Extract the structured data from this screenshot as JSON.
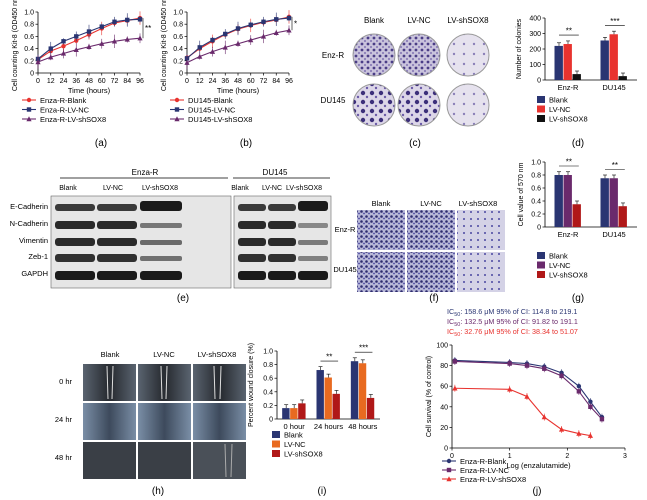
{
  "colors": {
    "red": "#e8332f",
    "navy": "#2a3572",
    "purple": "#6a2a6c",
    "darkred": "#b01818",
    "black": "#111111"
  },
  "panel_labels": [
    "(a)",
    "(b)",
    "(c)",
    "(d)",
    "(e)",
    "(f)",
    "(g)",
    "(h)",
    "(i)",
    "(j)"
  ],
  "chart_data": [
    {
      "type": "line",
      "panel": "(a)",
      "xlabel": "Time (hours)",
      "ylabel": "Cell counting Kit-8 (OD450 nm)",
      "xlim": [
        0,
        96
      ],
      "ylim": [
        0,
        1.0
      ],
      "x": [
        0,
        12,
        24,
        36,
        48,
        60,
        72,
        84,
        96
      ],
      "xticks": [
        0,
        12,
        24,
        36,
        48,
        60,
        72,
        84,
        96
      ],
      "yticks": [
        0,
        0.2,
        0.4,
        0.6,
        0.8,
        1.0
      ],
      "ytick_labels": [
        "0",
        "0.2",
        "0.4",
        "0.6",
        "0.8",
        "1.0"
      ],
      "series": [
        {
          "name": "Enza-R-Blank",
          "marker": "circle",
          "color": "#e8332f",
          "values": [
            0.22,
            0.36,
            0.44,
            0.53,
            0.63,
            0.73,
            0.82,
            0.86,
            0.9
          ]
        },
        {
          "name": "Enza-R-LV-NC",
          "marker": "square",
          "color": "#2a3572",
          "values": [
            0.23,
            0.4,
            0.52,
            0.6,
            0.68,
            0.76,
            0.84,
            0.87,
            0.88
          ]
        },
        {
          "name": "Enza-R-LV-shSOX8",
          "marker": "triangle",
          "color": "#6a2a6c",
          "values": [
            0.18,
            0.26,
            0.32,
            0.38,
            0.43,
            0.48,
            0.52,
            0.55,
            0.57
          ]
        }
      ],
      "annotations": [
        "**"
      ]
    },
    {
      "type": "line",
      "panel": "(b)",
      "xlabel": "Time (hours)",
      "ylabel": "Cell counting Kit-8 (OD450 nm)",
      "xlim": [
        0,
        96
      ],
      "ylim": [
        0,
        1.0
      ],
      "x": [
        0,
        12,
        24,
        36,
        48,
        60,
        72,
        84,
        96
      ],
      "xticks": [
        0,
        12,
        24,
        36,
        48,
        60,
        72,
        84,
        96
      ],
      "yticks": [
        0,
        0.2,
        0.4,
        0.6,
        0.8,
        1.0
      ],
      "ytick_labels": [
        "0",
        "0.2",
        "0.4",
        "0.6",
        "0.8",
        "1.0"
      ],
      "series": [
        {
          "name": "DU145-Blank",
          "marker": "circle",
          "color": "#e8332f",
          "values": [
            0.25,
            0.4,
            0.52,
            0.63,
            0.72,
            0.78,
            0.83,
            0.87,
            0.92
          ]
        },
        {
          "name": "DU145-LV-NC",
          "marker": "square",
          "color": "#2a3572",
          "values": [
            0.24,
            0.42,
            0.54,
            0.64,
            0.73,
            0.79,
            0.84,
            0.88,
            0.9
          ]
        },
        {
          "name": "DU145-LV-shSOX8",
          "marker": "triangle",
          "color": "#6a2a6c",
          "values": [
            0.17,
            0.27,
            0.35,
            0.42,
            0.48,
            0.54,
            0.6,
            0.66,
            0.7
          ]
        }
      ],
      "annotations": [
        "*"
      ]
    },
    {
      "type": "bar",
      "panel": "(d)",
      "ylabel": "Number of colonies",
      "ylim": [
        0,
        400
      ],
      "yticks": [
        0,
        100,
        200,
        300,
        400
      ],
      "categories": [
        "Enz-R",
        "DU145"
      ],
      "series": [
        {
          "name": "Blank",
          "color": "#2a3572",
          "values": [
            220,
            255
          ]
        },
        {
          "name": "LV-NC",
          "color": "#e8332f",
          "values": [
            232,
            295
          ]
        },
        {
          "name": "LV-shSOX8",
          "color": "#111111",
          "values": [
            38,
            25
          ]
        }
      ],
      "annotations": [
        "**",
        "***"
      ]
    },
    {
      "type": "bar",
      "panel": "(g)",
      "ylabel": "Cell value of 570 nm",
      "ylim": [
        0,
        1.0
      ],
      "yticks": [
        0,
        0.2,
        0.4,
        0.6,
        0.8,
        1.0
      ],
      "ytick_labels": [
        "0",
        "0.2",
        "0.4",
        "0.6",
        "0.8",
        "1.0"
      ],
      "categories": [
        "Enz-R",
        "DU145"
      ],
      "series": [
        {
          "name": "Blank",
          "color": "#2a3572",
          "values": [
            0.8,
            0.75
          ]
        },
        {
          "name": "LV-NC",
          "color": "#6a2a6c",
          "values": [
            0.8,
            0.75
          ]
        },
        {
          "name": "LV-shSOX8",
          "color": "#b01818",
          "values": [
            0.35,
            0.32
          ]
        }
      ],
      "annotations": [
        "**",
        "**"
      ]
    },
    {
      "type": "bar",
      "panel": "(i)",
      "ylabel": "Percent wound closure (%)",
      "ylim": [
        0,
        1.0
      ],
      "yticks": [
        0,
        0.2,
        0.4,
        0.6,
        0.8,
        1.0
      ],
      "ytick_labels": [
        "0",
        "0.2",
        "0.4",
        "0.6",
        "0.8",
        "1.0"
      ],
      "categories": [
        "0 hour",
        "24 hours",
        "48 hours"
      ],
      "series": [
        {
          "name": "Blank",
          "color": "#2a3572",
          "values": [
            0.16,
            0.72,
            0.85
          ]
        },
        {
          "name": "LV-NC",
          "color": "#e86a20",
          "values": [
            0.16,
            0.61,
            0.82
          ]
        },
        {
          "name": "LV-shSOX8",
          "color": "#b01818",
          "values": [
            0.23,
            0.37,
            0.31
          ]
        }
      ],
      "annotations": [
        "**",
        "***"
      ]
    },
    {
      "type": "line",
      "panel": "(j)",
      "xlabel": "Log (enzalutamide)",
      "ylabel": "Cell survival (% of control)",
      "xlim": [
        0,
        3
      ],
      "ylim": [
        0,
        100
      ],
      "xticks": [
        0,
        1,
        2,
        3
      ],
      "yticks": [
        0,
        20,
        40,
        60,
        80,
        100
      ],
      "ic50": [
        {
          "text": "IC",
          "sub": "50",
          "rest": ": 158.6 μM 95% of CI: 114.8 to 219.1",
          "color": "#2a3572"
        },
        {
          "text": "IC",
          "sub": "50",
          "rest": ": 132.5 μM 95% of CI: 91.82 to 191.1",
          "color": "#6a2a6c"
        },
        {
          "text": "IC",
          "sub": "50",
          "rest": ": 32.76 μM 95% of CI: 38.34 to 51.07",
          "color": "#e8332f"
        }
      ],
      "series": [
        {
          "name": "Enza-R-Blank",
          "marker": "circle",
          "color": "#2a3572",
          "x": [
            0.05,
            1.0,
            1.3,
            1.6,
            1.9,
            2.2,
            2.4,
            2.6
          ],
          "values": [
            85,
            83,
            82,
            79,
            73,
            60,
            45,
            30
          ]
        },
        {
          "name": "Enza-R-LV-NC",
          "marker": "square",
          "color": "#6a2a6c",
          "x": [
            0.05,
            1.0,
            1.3,
            1.6,
            1.9,
            2.2,
            2.4,
            2.6
          ],
          "values": [
            84,
            82,
            80,
            77,
            70,
            55,
            40,
            28
          ]
        },
        {
          "name": "Enza-R-LV-shSOX8",
          "marker": "triangle",
          "color": "#e8332f",
          "x": [
            0.05,
            1.0,
            1.3,
            1.6,
            1.9,
            2.2,
            2.4
          ],
          "values": [
            58,
            57,
            50,
            30,
            18,
            14,
            12
          ]
        }
      ]
    }
  ],
  "panel_c": {
    "columns": [
      "Blank",
      "LV-NC",
      "LV-shSOX8"
    ],
    "rows": [
      "Enz-R",
      "DU145"
    ]
  },
  "panel_e": {
    "groups": [
      "Enza-R",
      "DU145"
    ],
    "columns": [
      "Blank",
      "LV-NC",
      "LV-shSOX8",
      "Blank",
      "LV-NC",
      "LV-shSOX8"
    ],
    "rows": [
      "E-Cadherin",
      "N-Cadherin",
      "Vimentin",
      "Zeb-1",
      "GAPDH"
    ]
  },
  "panel_f": {
    "columns": [
      "Blank",
      "LV-NC",
      "LV-shSOX8"
    ],
    "rows": [
      "Enz-R",
      "DU145"
    ]
  },
  "panel_h": {
    "columns": [
      "Blank",
      "LV-NC",
      "LV-shSOX8"
    ],
    "rows": [
      "0 hr",
      "24 hr",
      "48 hr"
    ]
  }
}
